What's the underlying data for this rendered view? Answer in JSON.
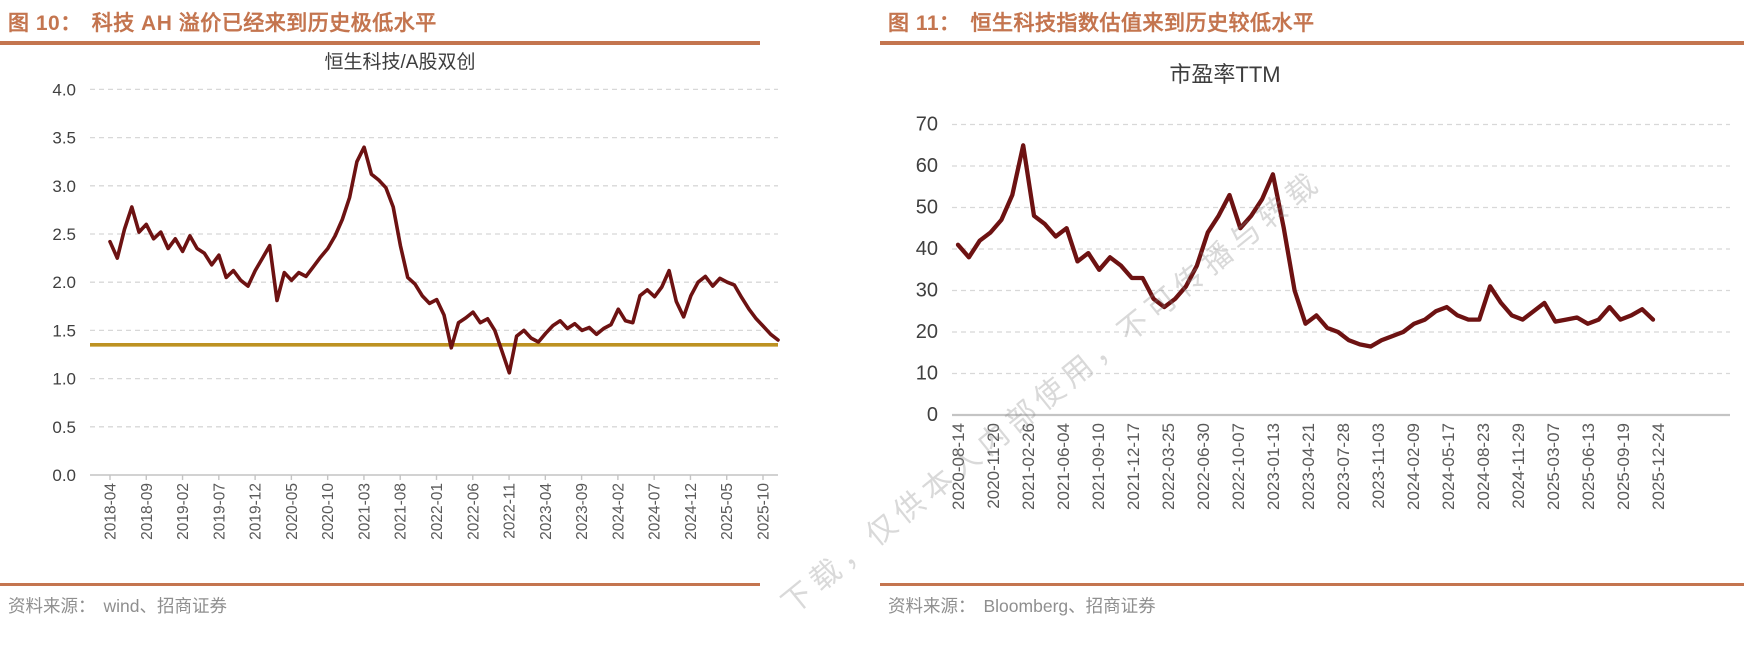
{
  "figures": [
    {
      "label": "图 10：",
      "title": "科技 AH 溢价已经来到历史极低水平",
      "source_prefix": "资料来源：",
      "source": "wind、招商证券"
    },
    {
      "label": "图 11：",
      "title": "恒生科技指数估值来到历史较低水平",
      "source_prefix": "资料来源：",
      "source": "Bloomberg、招商证券"
    }
  ],
  "watermark": {
    "text": "下载，仅供本人内部使用，不可传播与转载"
  },
  "colors": {
    "header": "#C4754F",
    "series": "#6D1212",
    "reference": "#BD9222",
    "grid": "#D8D8D8",
    "baseline": "#C4C4C4",
    "x_label": "#595959",
    "y_label": "#404040",
    "chart_title": "#3D3D3D",
    "source_text": "#8F8F8F"
  },
  "chart_data": [
    {
      "type": "line",
      "title": "恒生科技/A股双创",
      "xlabel": "",
      "ylabel": "",
      "ylim": [
        0,
        4.0
      ],
      "grid": "dashed-horizontal",
      "legend_position": "none",
      "line_color": "#6D1212",
      "x_start": "2018-04",
      "x_freq": "monthly",
      "x_tick_labels": [
        "2018-04",
        "2018-09",
        "2019-02",
        "2019-07",
        "2019-12",
        "2020-05",
        "2020-10",
        "2021-03",
        "2021-08",
        "2022-01",
        "2022-06",
        "2022-11",
        "2023-04",
        "2023-09",
        "2024-02",
        "2024-07",
        "2024-12",
        "2025-05",
        "2025-10"
      ],
      "y_ticks": [
        "4.0",
        "3.5",
        "3.0",
        "2.5",
        "2.0",
        "1.5",
        "1.0",
        "0.5",
        "0.0"
      ],
      "reference_line": {
        "value": 1.35,
        "color": "#BD9222"
      },
      "values": [
        2.42,
        2.25,
        2.55,
        2.78,
        2.52,
        2.6,
        2.45,
        2.52,
        2.35,
        2.45,
        2.32,
        2.48,
        2.35,
        2.3,
        2.18,
        2.28,
        2.05,
        2.12,
        2.02,
        1.96,
        2.12,
        2.25,
        2.38,
        1.81,
        2.1,
        2.02,
        2.1,
        2.06,
        2.16,
        2.26,
        2.35,
        2.48,
        2.65,
        2.88,
        3.25,
        3.4,
        3.12,
        3.06,
        2.98,
        2.78,
        2.38,
        2.05,
        1.98,
        1.86,
        1.78,
        1.82,
        1.66,
        1.32,
        1.58,
        1.63,
        1.69,
        1.58,
        1.62,
        1.5,
        1.28,
        1.06,
        1.44,
        1.5,
        1.42,
        1.38,
        1.47,
        1.55,
        1.6,
        1.52,
        1.57,
        1.5,
        1.53,
        1.46,
        1.52,
        1.56,
        1.72,
        1.6,
        1.58,
        1.86,
        1.92,
        1.85,
        1.95,
        2.12,
        1.8,
        1.64,
        1.86,
        2.0,
        2.06,
        1.96,
        2.04,
        2.0,
        1.97,
        1.84,
        1.72,
        1.62,
        1.54,
        1.46,
        1.4
      ]
    },
    {
      "type": "line",
      "title": "市盈率TTM",
      "xlabel": "",
      "ylabel": "",
      "ylim": [
        0,
        70
      ],
      "grid": "dashed-horizontal",
      "legend_position": "none",
      "line_color": "#6D1212",
      "x_start": "2020-08",
      "x_freq": "monthly",
      "x_tick_labels": [
        "2020-08-14",
        "2020-11-20",
        "2021-02-26",
        "2021-06-04",
        "2021-09-10",
        "2021-12-17",
        "2022-03-25",
        "2022-06-30",
        "2022-10-07",
        "2023-01-13",
        "2023-04-21",
        "2023-07-28",
        "2023-11-03",
        "2024-02-09",
        "2024-05-17",
        "2024-08-23",
        "2024-11-29",
        "2025-03-07",
        "2025-06-13",
        "2025-09-19",
        "2025-12-24"
      ],
      "y_ticks": [
        "70",
        "60",
        "50",
        "40",
        "30",
        "20",
        "10",
        "0"
      ],
      "values": [
        41,
        38,
        42,
        44,
        47,
        53,
        65,
        48,
        46,
        43,
        45,
        37,
        39,
        35,
        38,
        36,
        33,
        33,
        28,
        26,
        28,
        31,
        36,
        44,
        48,
        53,
        45,
        48,
        52,
        58,
        45,
        30,
        22,
        24,
        21,
        20,
        18,
        17,
        16.5,
        18,
        19,
        20,
        22,
        23,
        25,
        26,
        24,
        23,
        23,
        31,
        27,
        24,
        23,
        25,
        27,
        22.5,
        23,
        23.5,
        22,
        23,
        26,
        23,
        24,
        25.5,
        23
      ]
    }
  ]
}
